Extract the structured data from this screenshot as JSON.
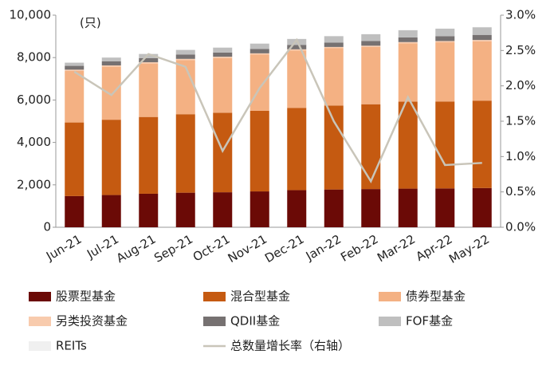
{
  "chart_data": {
    "type": "bar",
    "unit_label": "(只)",
    "categories": [
      "Jun-21",
      "Jul-21",
      "Aug-21",
      "Sep-21",
      "Oct-21",
      "Nov-21",
      "Dec-21",
      "Jan-22",
      "Feb-22",
      "Mar-22",
      "Apr-22",
      "May-22"
    ],
    "series": [
      {
        "name": "股票型基金",
        "color": "#6b0a06",
        "values": [
          1470,
          1520,
          1580,
          1630,
          1650,
          1690,
          1750,
          1780,
          1800,
          1820,
          1830,
          1850
        ]
      },
      {
        "name": "混合型基金",
        "color": "#c55a11",
        "values": [
          3470,
          3550,
          3620,
          3700,
          3750,
          3800,
          3880,
          3960,
          4000,
          4100,
          4100,
          4120
        ]
      },
      {
        "name": "债券型基金",
        "color": "#f4b183",
        "values": [
          2430,
          2500,
          2520,
          2550,
          2580,
          2650,
          2700,
          2700,
          2700,
          2750,
          2790,
          2800
        ]
      },
      {
        "name": "另类投资基金",
        "color": "#f8cbad",
        "values": [
          60,
          60,
          60,
          60,
          60,
          60,
          60,
          60,
          60,
          60,
          60,
          60
        ]
      },
      {
        "name": "QDII基金",
        "color": "#767171",
        "values": [
          180,
          190,
          190,
          200,
          200,
          210,
          210,
          210,
          220,
          220,
          230,
          240
        ]
      },
      {
        "name": "FOF基金",
        "color": "#bfbfbf",
        "values": [
          150,
          180,
          200,
          220,
          230,
          250,
          280,
          300,
          320,
          340,
          350,
          360
        ]
      },
      {
        "name": "REITs",
        "color": "#f0f0f0",
        "values": [
          0,
          0,
          0,
          0,
          0,
          10,
          11,
          12,
          12,
          12,
          13,
          14
        ]
      },
      {
        "name": "总数量增长率（右轴）",
        "color": "#c9c5b9",
        "axis": "y2",
        "values": [
          2.2,
          1.87,
          2.45,
          2.27,
          1.08,
          1.97,
          2.65,
          1.5,
          0.65,
          1.84,
          0.88,
          0.91
        ]
      }
    ],
    "ylim": [
      0,
      10000
    ],
    "yticks": [
      0,
      {
        "value": 2000,
        "label": "2,000"
      },
      {
        "value": 4000,
        "label": "4,000"
      },
      {
        "value": 6000,
        "label": "6,000"
      },
      {
        "value": 8000,
        "label": "8,000"
      },
      {
        "value": 10000,
        "label": "10,000"
      }
    ],
    "y2lim": [
      0,
      3
    ],
    "y2ticks": [
      {
        "value": 0,
        "label": "0.0%"
      },
      {
        "value": 0.5,
        "label": "0.5%"
      },
      {
        "value": 1,
        "label": "1.0%"
      },
      {
        "value": 1.5,
        "label": "1.5%"
      },
      {
        "value": 2,
        "label": "2.0%"
      },
      {
        "value": 2.5,
        "label": "2.5%"
      },
      {
        "value": 3,
        "label": "3.0%"
      }
    ],
    "grid": false
  }
}
